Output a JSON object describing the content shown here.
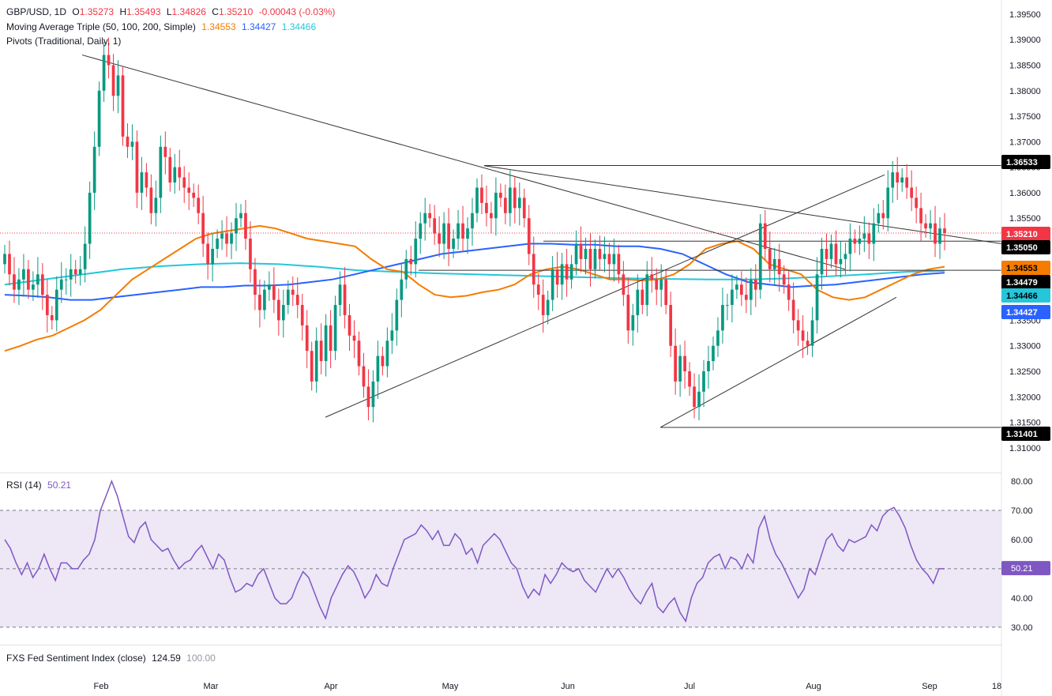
{
  "header": {
    "symbol": "GBP/USD, 1D",
    "open_label": "O",
    "open": "1.35273",
    "high_label": "H",
    "high": "1.35493",
    "low_label": "L",
    "low": "1.34826",
    "close_label": "C",
    "close": "1.35210",
    "change": "-0.00043 (-0.03%)",
    "ma_label": "Moving Average Triple (50, 100, 200, Simple)",
    "ma50": "1.34553",
    "ma100": "1.34427",
    "ma200": "1.34466",
    "pivots_label": "Pivots (Traditional, Daily, 1)"
  },
  "rsi_panel": {
    "label": "RSI (14)",
    "value": "50.21"
  },
  "sentiment_panel": {
    "label": "FXS Fed Sentiment Index (close)",
    "value": "124.59",
    "value2": "100.00"
  },
  "colors": {
    "up": "#089981",
    "down": "#f23645",
    "ma50": "#f57c00",
    "ma100": "#2962ff",
    "ma200": "#26c6da",
    "rsi": "#7e57c2",
    "rsi_band": "#ede7f6",
    "line": "#333333",
    "neg": "#f23645"
  },
  "chart_data": [
    {
      "type": "candlestick",
      "title": "GBP/USD, 1D",
      "x_ticks": [
        "Feb",
        "Mar",
        "Apr",
        "May",
        "Jun",
        "Jul",
        "Aug",
        "Sep",
        "18"
      ],
      "ylim": [
        1.3075,
        1.397
      ],
      "y_ticks": [
        "1.39500",
        "1.39000",
        "1.38500",
        "1.38000",
        "1.37500",
        "1.37000",
        "1.36500",
        "1.36000",
        "1.35500",
        "1.35000",
        "1.34500",
        "1.34000",
        "1.33500",
        "1.33000",
        "1.32500",
        "1.32000",
        "1.31500",
        "1.31000"
      ],
      "price_labels": [
        {
          "value": "1.36533",
          "kind": "pivot"
        },
        {
          "value": "1.35210",
          "kind": "close"
        },
        {
          "value": "1.35050",
          "kind": "pivot"
        },
        {
          "value": "1.34553",
          "kind": "ma50"
        },
        {
          "value": "1.34479",
          "kind": "pivot"
        },
        {
          "value": "1.34466",
          "kind": "ma200"
        },
        {
          "value": "1.34427",
          "kind": "ma100"
        },
        {
          "value": "1.31401",
          "kind": "pivot"
        }
      ],
      "close_series": [
        1.348,
        1.344,
        1.341,
        1.343,
        1.345,
        1.341,
        1.342,
        1.344,
        1.34,
        1.336,
        1.335,
        1.341,
        1.343,
        1.343,
        1.345,
        1.344,
        1.345,
        1.35,
        1.36,
        1.369,
        1.38,
        1.387,
        1.385,
        1.379,
        1.383,
        1.371,
        1.369,
        1.37,
        1.36,
        1.364,
        1.361,
        1.356,
        1.359,
        1.369,
        1.367,
        1.362,
        1.365,
        1.363,
        1.361,
        1.36,
        1.359,
        1.356,
        1.35,
        1.346,
        1.349,
        1.351,
        1.352,
        1.35,
        1.352,
        1.355,
        1.356,
        1.351,
        1.345,
        1.34,
        1.337,
        1.341,
        1.342,
        1.339,
        1.335,
        1.338,
        1.341,
        1.34,
        1.338,
        1.334,
        1.329,
        1.323,
        1.331,
        1.327,
        1.334,
        1.329,
        1.338,
        1.342,
        1.336,
        1.332,
        1.331,
        1.326,
        1.322,
        1.318,
        1.323,
        1.328,
        1.326,
        1.331,
        1.333,
        1.339,
        1.343,
        1.347,
        1.346,
        1.351,
        1.354,
        1.356,
        1.355,
        1.352,
        1.35,
        1.354,
        1.349,
        1.351,
        1.354,
        1.351,
        1.353,
        1.356,
        1.361,
        1.358,
        1.356,
        1.355,
        1.36,
        1.359,
        1.356,
        1.361,
        1.357,
        1.359,
        1.355,
        1.348,
        1.342,
        1.34,
        1.336,
        1.339,
        1.345,
        1.342,
        1.346,
        1.343,
        1.346,
        1.35,
        1.347,
        1.349,
        1.345,
        1.349,
        1.347,
        1.348,
        1.346,
        1.348,
        1.344,
        1.34,
        1.333,
        1.336,
        1.341,
        1.338,
        1.344,
        1.343,
        1.341,
        1.343,
        1.338,
        1.33,
        1.323,
        1.328,
        1.325,
        1.322,
        1.318,
        1.321,
        1.325,
        1.327,
        1.33,
        1.333,
        1.338,
        1.338,
        1.341,
        1.342,
        1.34,
        1.339,
        1.343,
        1.341,
        1.354,
        1.349,
        1.345,
        1.347,
        1.344,
        1.342,
        1.339,
        1.335,
        1.333,
        1.331,
        1.33,
        1.335,
        1.344,
        1.349,
        1.347,
        1.35,
        1.346,
        1.347,
        1.348,
        1.351,
        1.35,
        1.351,
        1.352,
        1.35,
        1.354,
        1.356,
        1.355,
        1.361,
        1.364,
        1.362,
        1.363,
        1.361,
        1.359,
        1.357,
        1.354,
        1.353,
        1.354,
        1.35,
        1.353,
        1.3521
      ],
      "ma50": [
        1.329,
        1.33,
        1.3312,
        1.332,
        1.3335,
        1.335,
        1.337,
        1.34,
        1.343,
        1.345,
        1.347,
        1.349,
        1.351,
        1.352,
        1.3525,
        1.353,
        1.3535,
        1.353,
        1.352,
        1.351,
        1.3505,
        1.35,
        1.3495,
        1.347,
        1.345,
        1.3445,
        1.342,
        1.34,
        1.3395,
        1.3398,
        1.3405,
        1.341,
        1.342,
        1.344,
        1.345,
        1.3455,
        1.345,
        1.344,
        1.343,
        1.343,
        1.3428,
        1.343,
        1.344,
        1.346,
        1.349,
        1.35,
        1.3505,
        1.349,
        1.346,
        1.345,
        1.344,
        1.341,
        1.3395,
        1.339,
        1.3395,
        1.341,
        1.3425,
        1.344,
        1.345,
        1.3455
      ],
      "ma100": [
        1.34,
        1.3398,
        1.3395,
        1.339,
        1.339,
        1.3395,
        1.34,
        1.3405,
        1.341,
        1.3415,
        1.3415,
        1.3418,
        1.3418,
        1.342,
        1.3425,
        1.343,
        1.344,
        1.345,
        1.346,
        1.347,
        1.348,
        1.3485,
        1.349,
        1.3495,
        1.35,
        1.35,
        1.3498,
        1.3498,
        1.3495,
        1.3495,
        1.349,
        1.348,
        1.346,
        1.344,
        1.3425,
        1.342,
        1.3415,
        1.3418,
        1.342,
        1.3425,
        1.343,
        1.3435,
        1.344,
        1.3443
      ],
      "ma200": [
        1.342,
        1.343,
        1.344,
        1.345,
        1.3456,
        1.346,
        1.3462,
        1.346,
        1.3455,
        1.3448,
        1.3445,
        1.3442,
        1.344,
        1.3438,
        1.3436,
        1.3434,
        1.3432,
        1.3431,
        1.343,
        1.343,
        1.3432,
        1.3436,
        1.344,
        1.3445,
        1.3447
      ]
    },
    {
      "type": "line",
      "title": "RSI (14)",
      "ylim": [
        24.0,
        83.0
      ],
      "y_ticks": [
        "80.00",
        "70.00",
        "60.00",
        "50.00",
        "40.00",
        "30.00"
      ],
      "levels": [
        70,
        50,
        30
      ],
      "values": [
        60,
        57,
        52,
        48,
        52,
        47,
        50,
        55,
        50,
        46,
        52,
        52,
        50,
        50,
        53,
        55,
        60,
        70,
        75,
        80,
        75,
        68,
        61,
        59,
        64,
        66,
        60,
        58,
        56,
        57,
        53,
        50,
        52,
        53,
        56,
        58,
        54,
        50,
        55,
        53,
        47,
        42,
        43,
        45,
        44,
        48,
        50,
        45,
        40,
        38,
        38,
        40,
        45,
        49,
        47,
        42,
        37,
        33,
        40,
        44,
        48,
        51,
        49,
        45,
        40,
        43,
        48,
        45,
        44,
        50,
        55,
        60,
        61,
        62,
        65,
        63,
        60,
        63,
        58,
        58,
        62,
        60,
        55,
        57,
        52,
        58,
        60,
        62,
        60,
        56,
        52,
        50,
        44,
        40,
        43,
        41,
        48,
        45,
        48,
        52,
        50,
        49,
        50,
        46,
        44,
        42,
        46,
        50,
        47,
        50,
        47,
        43,
        40,
        38,
        42,
        45,
        37,
        35,
        38,
        40,
        35,
        32,
        40,
        45,
        47,
        52,
        54,
        55,
        50,
        54,
        53,
        50,
        55,
        52,
        64,
        68,
        60,
        55,
        52,
        48,
        44,
        40,
        43,
        50,
        48,
        54,
        60,
        62,
        58,
        56,
        60,
        59,
        60,
        61,
        65,
        63,
        68,
        70,
        71,
        68,
        64,
        58,
        53,
        50,
        48,
        45,
        50,
        50
      ],
      "last_label": "50.21"
    }
  ]
}
